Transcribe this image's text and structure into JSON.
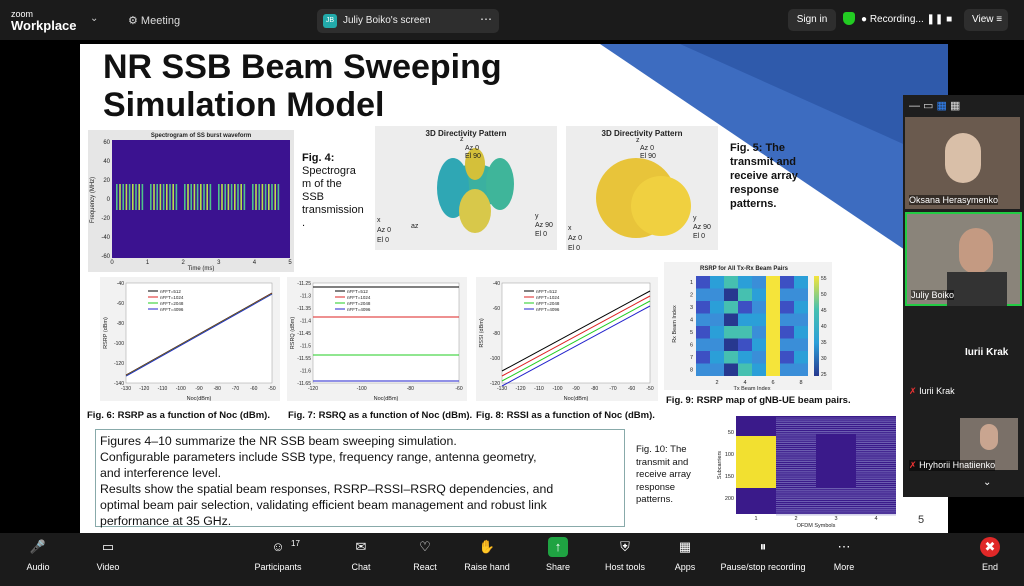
{
  "top_bar": {
    "logo_line1": "zoom",
    "logo_line2": "Workplace",
    "meeting": "Meeting",
    "share_initials": "JB",
    "share_label": "Juliy Boiko's screen",
    "sign_in": "Sign in",
    "recording": "Recording...",
    "view": "View"
  },
  "slide": {
    "title_lines": [
      "NR SSB Beam Sweeping",
      "Simulation Model"
    ],
    "fig4": {
      "plot_title": "Spectrogram of SS burst waveform",
      "y_label": "Frequency (MHz)",
      "x_label": "Time (ms)",
      "y_ticks": [
        "60",
        "40",
        "20",
        "0",
        "-20",
        "-40",
        "-60"
      ],
      "x_ticks": [
        "0",
        "1",
        "2",
        "3",
        "4",
        "5"
      ],
      "caption_lines": [
        "Fig. 4:",
        "Spectrogra",
        "m of the",
        "SSB",
        "transmission",
        "."
      ]
    },
    "directivity_left": {
      "title": "3D Directivity Pattern",
      "labels": [
        "z",
        "Az 0",
        "El 90",
        "x",
        "Az 0",
        "El 0",
        "az",
        "y",
        "Az 90",
        "El 0"
      ]
    },
    "directivity_right": {
      "title": "3D Directivity Pattern",
      "labels": [
        "z",
        "Az 0",
        "El 90",
        "x",
        "Az 0",
        "El 0",
        "y",
        "Az 90",
        "El 0"
      ]
    },
    "fig5_caption_lines": [
      "Fig. 5: The",
      "transmit and",
      "receive array",
      "response",
      "patterns."
    ],
    "fig6": {
      "y_label": "RSRP (dBm)",
      "x_label": "Noc(dBm)",
      "legend": [
        "nFFT=512",
        "nFFT=1024",
        "nFFT=2048",
        "nFFT=4096"
      ],
      "y_ticks": [
        "-40",
        "-60",
        "-80",
        "-100",
        "-120",
        "-140"
      ],
      "x_ticks": [
        "-130",
        "-120",
        "-110",
        "-100",
        "-90",
        "-80",
        "-70",
        "-60",
        "-50"
      ],
      "caption": "Fig. 6: RSRP as a function of Noc (dBm)."
    },
    "fig7": {
      "y_label": "RSRQ (dBm)",
      "x_label": "Noc(dBm)",
      "legend": [
        "nFFT=512",
        "nFFT=1024",
        "nFFT=2048",
        "nFFT=4096"
      ],
      "y_ticks": [
        "-11.25",
        "-11.3",
        "-11.35",
        "-11.4",
        "-11.45",
        "-11.5",
        "-11.55",
        "-11.6",
        "-11.65"
      ],
      "x_ticks": [
        "-120",
        "-100",
        "-80",
        "-60"
      ],
      "caption": "Fig. 7: RSRQ as a function of Noc (dBm)."
    },
    "fig8": {
      "y_label": "RSSI (dBm)",
      "x_label": "Noc(dBm)",
      "legend": [
        "nFFT=512",
        "nFFT=1024",
        "nFFT=2048",
        "nFFT=4096"
      ],
      "y_ticks": [
        "-40",
        "-60",
        "-80",
        "-100",
        "-120"
      ],
      "x_ticks": [
        "-130",
        "-120",
        "-110",
        "-100",
        "-90",
        "-80",
        "-70",
        "-60",
        "-50"
      ],
      "caption": "Fig. 8: RSSI as a function of Noc (dBm)."
    },
    "fig9": {
      "plot_title": "RSRP for All Tx-Rx Beam Pairs",
      "y_label": "Rx Beam Index",
      "x_label": "Tx Beam Index",
      "y_ticks": [
        "1",
        "2",
        "3",
        "4",
        "5",
        "6",
        "7",
        "8"
      ],
      "x_ticks": [
        "2",
        "4",
        "6",
        "8"
      ],
      "colorbar_ticks": [
        "55",
        "50",
        "45",
        "40",
        "35",
        "30",
        "25"
      ],
      "caption": "Fig. 9: RSRP map of gNB-UE beam pairs."
    },
    "summary_lines": [
      "Figures 4–10 summarize the NR SSB beam sweeping simulation.",
      "Configurable parameters include SSB type, frequency range, antenna geometry,",
      "and interference level.",
      "Results show the spatial beam responses, RSRP–RSSI–RSRQ dependencies, and",
      "optimal beam pair selection, validating efficient beam management and robust link",
      "performance at 35 GHz."
    ],
    "fig10": {
      "caption_lines": [
        "Fig. 10: The",
        "transmit and",
        "receive array",
        "response",
        "patterns."
      ],
      "y_label": "Subcarriers",
      "x_label": "OFDM Symbols",
      "y_ticks": [
        "50",
        "100",
        "150",
        "200"
      ],
      "x_ticks": [
        "1",
        "2",
        "3",
        "4"
      ]
    },
    "page_number": "5"
  },
  "participants": {
    "tiles": [
      "Oksana Herasymenko",
      "Juliy Boiko"
    ],
    "active_speaker": "Iurii Krak",
    "audio_only": "Iurii Krak",
    "bottom_tile": "Hryhorii Hnatiienko"
  },
  "toolbar": {
    "participants_count": "17",
    "items": [
      "Audio",
      "Video",
      "Participants",
      "Chat",
      "React",
      "Raise hand",
      "Share",
      "Host tools",
      "Apps",
      "Pause/stop recording",
      "More",
      "End"
    ]
  }
}
